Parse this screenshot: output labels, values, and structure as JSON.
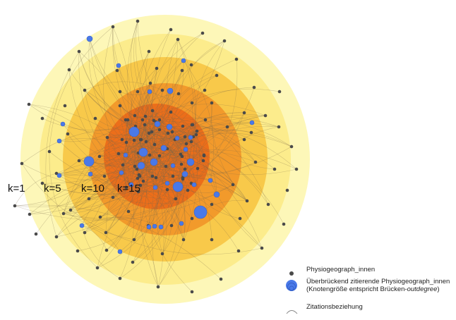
{
  "diagram": {
    "shell_labels": [
      "k=1",
      "k=5",
      "k=10",
      "k=15"
    ],
    "colors": {
      "shell_outer": "#fdf7b8",
      "shell_2": "#fcec8c",
      "shell_3": "#f8c94a",
      "shell_4": "#f29a2b",
      "shell_core": "#ec6e1a",
      "node_gray": "#4a4a4a",
      "node_blue": "#4a79e8",
      "edge": "#7a6a4a"
    }
  },
  "legend": {
    "gray_node_label": "Physiogeograph_innen",
    "blue_node_line1": "Überbrückend zitierende Physiogeograph_innen",
    "blue_node_line2_pre": "(Knotengröße entspricht Brücken-",
    "blue_node_line2_em": "outdegree",
    "blue_node_line2_post": ")",
    "edge_label": "Zitationsbeziehung"
  }
}
